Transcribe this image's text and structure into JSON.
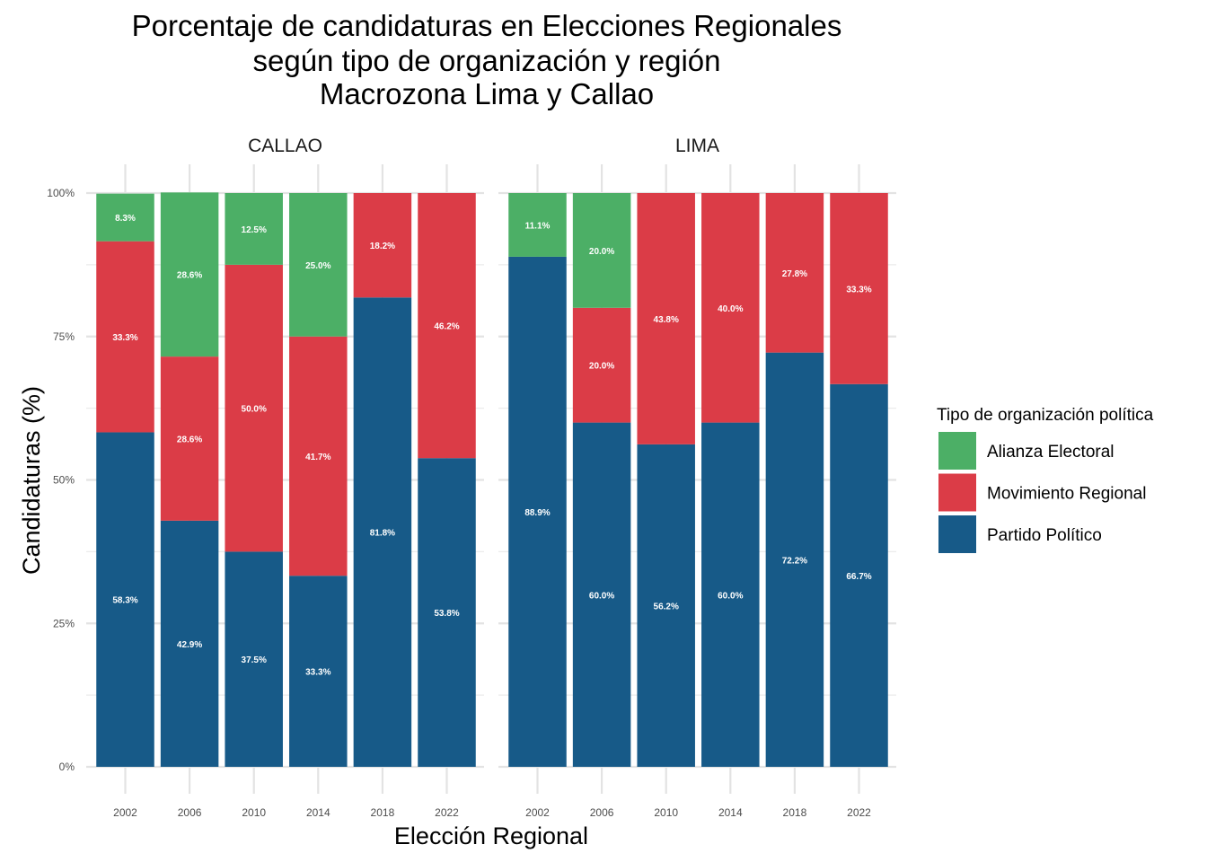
{
  "chart_data": {
    "type": "bar",
    "stacked": true,
    "title_lines": [
      "Porcentaje de candidaturas en Elecciones Regionales",
      "según tipo de organización y región",
      "Macrozona Lima y Callao"
    ],
    "xlabel": "Elección Regional",
    "ylabel": "Candidaturas (%)",
    "ylim": [
      0,
      100
    ],
    "yticks": [
      "0%",
      "25%",
      "50%",
      "75%",
      "100%"
    ],
    "categories": [
      "2002",
      "2006",
      "2010",
      "2014",
      "2018",
      "2022"
    ],
    "legend": {
      "title": "Tipo de organización política",
      "position": "right",
      "items": [
        {
          "name": "Alianza Electoral",
          "color": "#4caf66"
        },
        {
          "name": "Movimiento Regional",
          "color": "#db3c47"
        },
        {
          "name": "Partido Político",
          "color": "#175a88"
        }
      ]
    },
    "panels": [
      {
        "name": "CALLAO",
        "series": [
          {
            "name": "Partido Político",
            "values": [
              58.3,
              42.9,
              37.5,
              33.3,
              81.8,
              53.8
            ],
            "labels": [
              "58.3%",
              "42.9%",
              "37.5%",
              "33.3%",
              "81.8%",
              "53.8%"
            ]
          },
          {
            "name": "Movimiento Regional",
            "values": [
              33.3,
              28.6,
              50.0,
              41.7,
              18.2,
              46.2
            ],
            "labels": [
              "33.3%",
              "28.6%",
              "50.0%",
              "41.7%",
              "18.2%",
              "46.2%"
            ]
          },
          {
            "name": "Alianza Electoral",
            "values": [
              8.3,
              28.6,
              12.5,
              25.0,
              0,
              0
            ],
            "labels": [
              "8.3%",
              "28.6%",
              "12.5%",
              "25.0%",
              "",
              ""
            ]
          }
        ]
      },
      {
        "name": "LIMA",
        "series": [
          {
            "name": "Partido Político",
            "values": [
              88.9,
              60.0,
              56.2,
              60.0,
              72.2,
              66.7
            ],
            "labels": [
              "88.9%",
              "60.0%",
              "56.2%",
              "60.0%",
              "72.2%",
              "66.7%"
            ]
          },
          {
            "name": "Movimiento Regional",
            "values": [
              0,
              20.0,
              43.8,
              40.0,
              27.8,
              33.3
            ],
            "labels": [
              "",
              "20.0%",
              "43.8%",
              "40.0%",
              "27.8%",
              "33.3%"
            ]
          },
          {
            "name": "Alianza Electoral",
            "values": [
              11.1,
              20.0,
              0,
              0,
              0,
              0
            ],
            "labels": [
              "11.1%",
              "20.0%",
              "",
              "",
              "",
              ""
            ]
          }
        ]
      }
    ],
    "grid": true
  }
}
